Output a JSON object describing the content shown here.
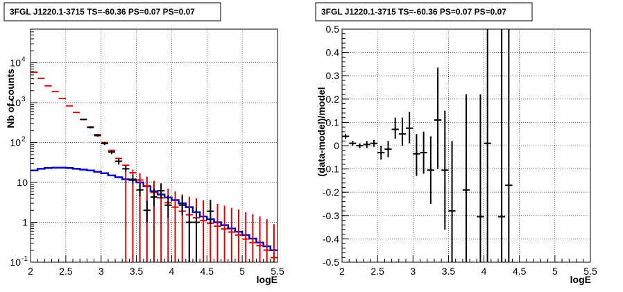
{
  "chart_data": [
    {
      "type": "line",
      "title": "3FGL J1220.1-3715 TS=-60.36 PS=0.07 PS=0.07",
      "xlabel": "logE",
      "ylabel": "Nb of counts",
      "xlim": [
        2,
        5.5
      ],
      "ylim": [
        0.1,
        70000
      ],
      "y_scale": "log",
      "grid": true,
      "x_ticks": [
        "2",
        "2.5",
        "3",
        "3.5",
        "4",
        "4.5",
        "5",
        "5.5"
      ],
      "y_ticks": [
        {
          "value": 0.1,
          "base": "10",
          "exp": "-1"
        },
        {
          "value": 1,
          "base": "1",
          "exp": ""
        },
        {
          "value": 10,
          "base": "10",
          "exp": ""
        },
        {
          "value": 100,
          "base": "10",
          "exp": "2"
        },
        {
          "value": 1000,
          "base": "10",
          "exp": "3"
        },
        {
          "value": 10000,
          "base": "10",
          "exp": "4"
        }
      ],
      "colors": {
        "model_points": "#dd0000",
        "data_points": "#000000",
        "model_line": "#0000cc"
      },
      "series": [
        {
          "role": "model_points",
          "x": [
            2.05,
            2.15,
            2.25,
            2.35,
            2.45,
            2.55,
            2.65,
            2.75,
            2.85,
            2.95,
            3.05,
            3.15,
            3.25,
            3.35,
            3.45,
            3.55,
            3.65,
            3.75,
            3.85,
            3.95,
            4.05,
            4.15,
            4.25,
            4.35,
            4.45,
            4.55,
            4.65,
            4.75,
            4.85,
            4.95,
            5.05,
            5.15,
            5.25,
            5.35,
            5.45
          ],
          "y": [
            5800,
            4100,
            2650,
            1900,
            1280,
            830,
            570,
            380,
            245,
            158,
            100,
            64,
            40,
            27,
            17.5,
            11.5,
            8.2,
            5.6,
            4.1,
            3.1,
            2.4,
            1.9,
            1.55,
            1.3,
            1.1,
            0.95,
            0.8,
            0.68,
            0.57,
            0.48,
            0.38,
            0.31,
            0.26,
            0.2,
            0.13
          ],
          "yerr_low": [
            null,
            null,
            null,
            null,
            null,
            null,
            null,
            null,
            null,
            null,
            null,
            null,
            null,
            null,
            null,
            null,
            null,
            null,
            null,
            null,
            0.1,
            0.1,
            0.1,
            0.1,
            0.1,
            0.1,
            0.1,
            0.1,
            0.1,
            0.1,
            0.1,
            0.1,
            0.1,
            0.1,
            0.1
          ],
          "yerr_high": [
            null,
            null,
            null,
            null,
            null,
            null,
            null,
            null,
            null,
            null,
            null,
            null,
            null,
            18,
            21,
            17,
            14,
            11,
            9,
            7,
            6,
            5,
            4.4,
            4,
            3.6,
            3.2,
            2.9,
            2.6,
            2.3,
            2.1,
            1.8,
            1.6,
            1.4,
            1.2,
            0.9
          ]
        },
        {
          "role": "data_points",
          "x": [
            2.75,
            2.85,
            2.95,
            3.05,
            3.15,
            3.25,
            3.35,
            3.45,
            3.55,
            3.65,
            3.75,
            3.85,
            3.95,
            4.15,
            4.25,
            4.35,
            4.55
          ],
          "y": [
            380,
            240,
            150,
            95,
            58,
            34,
            22,
            12,
            6.5,
            2,
            4.3,
            6.2,
            2.7,
            2.7,
            1,
            1,
            1.9
          ],
          "yerr_low": [
            360,
            225,
            140,
            87,
            51,
            28,
            18,
            9,
            4.5,
            1,
            2.5,
            4,
            1.3,
            1.5,
            0.1,
            0.1,
            0.9
          ],
          "yerr_high": [
            400,
            255,
            162,
            104,
            66,
            40,
            27,
            15.5,
            9.5,
            3.5,
            7,
            9.5,
            4.8,
            4.6,
            2.3,
            2.3,
            3.7
          ]
        },
        {
          "role": "model_line",
          "x": [
            2.0,
            2.1,
            2.2,
            2.3,
            2.4,
            2.5,
            2.6,
            2.7,
            2.8,
            2.9,
            3.0,
            3.1,
            3.2,
            3.3,
            3.4,
            3.5,
            3.6,
            3.7,
            3.8,
            3.9,
            4.0,
            4.1,
            4.2,
            4.3,
            4.4,
            4.5,
            4.6,
            4.7,
            4.8,
            4.9,
            5.0,
            5.1,
            5.2,
            5.3,
            5.4,
            5.5
          ],
          "y": [
            20,
            22,
            23,
            23.5,
            23.5,
            23,
            22,
            21,
            20,
            18.5,
            17,
            15,
            13.5,
            12,
            11.5,
            10,
            8,
            6,
            5,
            4.2,
            3.6,
            3.0,
            2.4,
            1.8,
            1.4,
            1.2,
            1.0,
            0.85,
            0.7,
            0.58,
            0.48,
            0.39,
            0.31,
            0.25,
            0.2,
            0.2
          ]
        }
      ]
    },
    {
      "type": "scatter",
      "title": "3FGL J1220.1-3715 TS=-60.36 PS=0.07 PS=0.07",
      "xlabel": "logE",
      "ylabel": "(data-model)/model",
      "xlim": [
        2,
        5.5
      ],
      "ylim": [
        -0.5,
        0.5
      ],
      "grid": true,
      "x_ticks": [
        "2",
        "2.5",
        "3",
        "3.5",
        "4",
        "4.5",
        "5",
        "5.5"
      ],
      "y_ticks": [
        "-0.5",
        "-0.4",
        "-0.3",
        "-0.2",
        "-0.1",
        "0",
        "0.1",
        "0.2",
        "0.3",
        "0.4",
        "0.5"
      ],
      "series": [
        {
          "color": "#000000",
          "x": [
            2.05,
            2.15,
            2.25,
            2.35,
            2.45,
            2.55,
            2.65,
            2.75,
            2.85,
            2.95,
            3.05,
            3.15,
            3.25,
            3.35,
            3.45,
            3.55,
            3.75,
            3.95,
            4.05,
            4.25,
            4.35
          ],
          "y": [
            0.04,
            0.01,
            0.0,
            0.005,
            0.01,
            -0.03,
            -0.015,
            0.07,
            0.05,
            0.075,
            -0.035,
            -0.03,
            -0.105,
            0.11,
            -0.105,
            -0.28,
            -0.19,
            -0.305,
            0.01,
            -0.305,
            -0.17
          ],
          "yerr_low": [
            0.03,
            0.0,
            -0.01,
            -0.01,
            -0.005,
            -0.06,
            -0.05,
            0.03,
            0.0,
            0.01,
            -0.13,
            -0.12,
            -0.25,
            -0.1,
            -0.36,
            -0.5,
            -0.5,
            -0.5,
            -0.5,
            -0.5,
            -0.5
          ],
          "yerr_high": [
            0.05,
            0.02,
            0.01,
            0.02,
            0.025,
            0.0,
            0.02,
            0.12,
            0.12,
            0.145,
            0.05,
            0.06,
            0.04,
            0.335,
            0.15,
            0.02,
            0.22,
            0.22,
            0.5,
            0.5,
            0.5
          ]
        }
      ]
    }
  ]
}
